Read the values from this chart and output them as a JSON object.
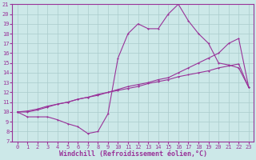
{
  "title": "",
  "xlabel": "Windchill (Refroidissement éolien,°C)",
  "xlim": [
    -0.5,
    23.5
  ],
  "ylim": [
    7,
    21
  ],
  "xticks": [
    0,
    1,
    2,
    3,
    4,
    5,
    6,
    7,
    8,
    9,
    10,
    11,
    12,
    13,
    14,
    15,
    16,
    17,
    18,
    19,
    20,
    21,
    22,
    23
  ],
  "yticks": [
    7,
    8,
    9,
    10,
    11,
    12,
    13,
    14,
    15,
    16,
    17,
    18,
    19,
    20,
    21
  ],
  "bg_color": "#cce8e8",
  "line_color": "#993399",
  "grid_color": "#aacccc",
  "line1_x": [
    0,
    1,
    2,
    3,
    4,
    5,
    6,
    7,
    8,
    9,
    10,
    11,
    12,
    13,
    14,
    15,
    16,
    17,
    18,
    19,
    20,
    21,
    22,
    23
  ],
  "line1_y": [
    10.0,
    9.5,
    9.5,
    9.5,
    9.2,
    8.8,
    8.5,
    7.8,
    8.0,
    9.8,
    15.5,
    18.0,
    19.0,
    18.5,
    18.5,
    20.0,
    21.0,
    19.3,
    18.0,
    17.0,
    15.0,
    14.8,
    14.5,
    12.5
  ],
  "line2_x": [
    0,
    1,
    2,
    3,
    4,
    5,
    6,
    7,
    8,
    9,
    10,
    11,
    12,
    13,
    14,
    15,
    16,
    17,
    18,
    19,
    20,
    21,
    22,
    23
  ],
  "line2_y": [
    10.0,
    10.0,
    10.2,
    10.5,
    10.8,
    11.0,
    11.3,
    11.5,
    11.8,
    12.0,
    12.3,
    12.6,
    12.8,
    13.0,
    13.3,
    13.5,
    14.0,
    14.5,
    15.0,
    15.5,
    16.0,
    17.0,
    17.5,
    12.5
  ],
  "line3_x": [
    0,
    1,
    2,
    3,
    4,
    5,
    6,
    7,
    8,
    9,
    10,
    11,
    12,
    13,
    14,
    15,
    16,
    17,
    18,
    19,
    20,
    21,
    22,
    23
  ],
  "line3_y": [
    10.0,
    10.1,
    10.3,
    10.6,
    10.8,
    11.0,
    11.3,
    11.5,
    11.7,
    12.0,
    12.2,
    12.4,
    12.6,
    12.9,
    13.1,
    13.3,
    13.6,
    13.8,
    14.0,
    14.2,
    14.5,
    14.7,
    14.9,
    12.5
  ],
  "tick_fontsize": 5.0,
  "xlabel_fontsize": 6.0
}
